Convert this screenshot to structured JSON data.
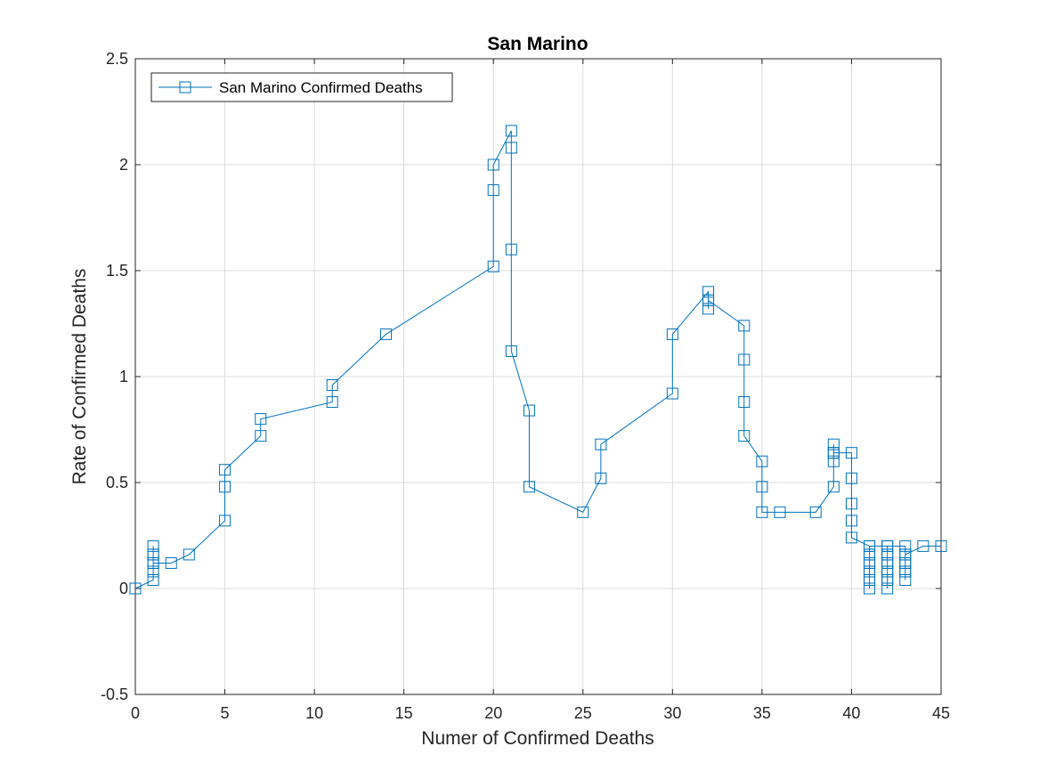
{
  "chart_data": {
    "type": "line",
    "title": "San Marino",
    "xlabel": "Numer of Confirmed Deaths",
    "ylabel": "Rate of Confirmed Deaths",
    "xlim": [
      0,
      45
    ],
    "ylim": [
      -0.5,
      2.5
    ],
    "xticks": [
      0,
      5,
      10,
      15,
      20,
      25,
      30,
      35,
      40,
      45
    ],
    "xtick_labels": [
      "0",
      "5",
      "10",
      "15",
      "20",
      "25",
      "30",
      "35",
      "40",
      "45"
    ],
    "yticks": [
      -0.5,
      0,
      0.5,
      1,
      1.5,
      2,
      2.5
    ],
    "ytick_labels": [
      "-0.5",
      "0",
      "0.5",
      "1",
      "1.5",
      "2",
      "2.5"
    ],
    "grid": true,
    "legend_position": "top-left",
    "marker": "square",
    "color": "#0072BD",
    "series": [
      {
        "name": "San Marino Confirmed Deaths",
        "x": [
          0,
          1,
          1,
          1,
          1,
          1,
          1,
          1,
          2,
          3,
          5,
          5,
          5,
          7,
          7,
          11,
          11,
          14,
          20,
          20,
          20,
          21,
          21,
          21,
          21,
          22,
          22,
          25,
          26,
          26,
          30,
          30,
          32,
          32,
          32,
          32,
          34,
          34,
          34,
          34,
          35,
          35,
          35,
          36,
          38,
          39,
          39,
          39,
          39,
          39,
          40,
          40,
          40,
          40,
          40,
          41,
          41,
          41,
          41,
          41,
          41,
          41,
          41,
          41,
          41,
          41,
          42,
          42,
          42,
          42,
          42,
          42,
          42,
          42,
          42,
          42,
          42,
          43,
          43,
          43,
          43,
          43,
          43,
          43,
          43,
          44,
          45
        ],
        "y": [
          0,
          0.04,
          0.08,
          0.12,
          0.16,
          0.2,
          0.16,
          0.12,
          0.12,
          0.16,
          0.32,
          0.48,
          0.56,
          0.72,
          0.8,
          0.88,
          0.96,
          1.2,
          1.52,
          1.88,
          2.0,
          2.16,
          2.08,
          1.6,
          1.12,
          0.84,
          0.48,
          0.36,
          0.52,
          0.68,
          0.92,
          1.2,
          1.4,
          1.36,
          1.32,
          1.36,
          1.24,
          1.08,
          0.88,
          0.72,
          0.6,
          0.48,
          0.36,
          0.36,
          0.36,
          0.48,
          0.6,
          0.64,
          0.68,
          0.64,
          0.64,
          0.52,
          0.4,
          0.32,
          0.24,
          0.2,
          0.16,
          0.12,
          0.08,
          0.04,
          0.0,
          0.04,
          0.08,
          0.12,
          0.16,
          0.2,
          0.2,
          0.16,
          0.12,
          0.08,
          0.04,
          0.0,
          0.04,
          0.08,
          0.12,
          0.16,
          0.2,
          0.2,
          0.16,
          0.12,
          0.08,
          0.04,
          0.08,
          0.12,
          0.16,
          0.2,
          0.2
        ]
      }
    ]
  }
}
